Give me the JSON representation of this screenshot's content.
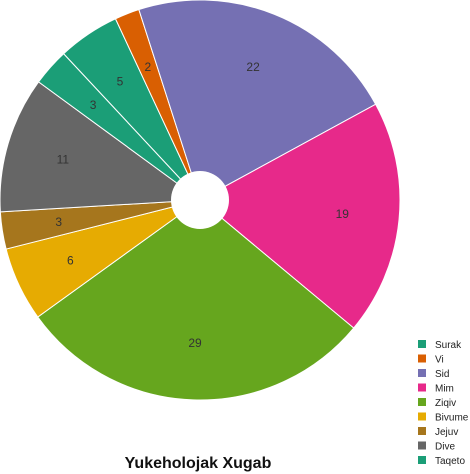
{
  "chart_data": {
    "type": "pie",
    "title": "Yukeholojak Xugab",
    "donut_hole": true,
    "legend_position": "bottom-right",
    "slices": [
      {
        "name": "Surak",
        "value": 5,
        "color": "#1b9e77",
        "label": "5"
      },
      {
        "name": "Vi",
        "value": 2,
        "color": "#d95f02",
        "label": "2"
      },
      {
        "name": "Sid",
        "value": 22,
        "color": "#7570b3",
        "label": "22"
      },
      {
        "name": "Mim",
        "value": 19,
        "color": "#e7298a",
        "label": "19"
      },
      {
        "name": "Ziqiv",
        "value": 29,
        "color": "#66a61e",
        "label": "29"
      },
      {
        "name": "Bivume",
        "value": 6,
        "color": "#e6ab02",
        "label": "6"
      },
      {
        "name": "Jejuv",
        "value": 3,
        "color": "#a6761d",
        "label": "3"
      },
      {
        "name": "Dive",
        "value": 11,
        "color": "#666666",
        "label": "11"
      },
      {
        "name": "Taqeto",
        "value": 3,
        "color": "#1b9e77",
        "label": "3"
      }
    ]
  }
}
